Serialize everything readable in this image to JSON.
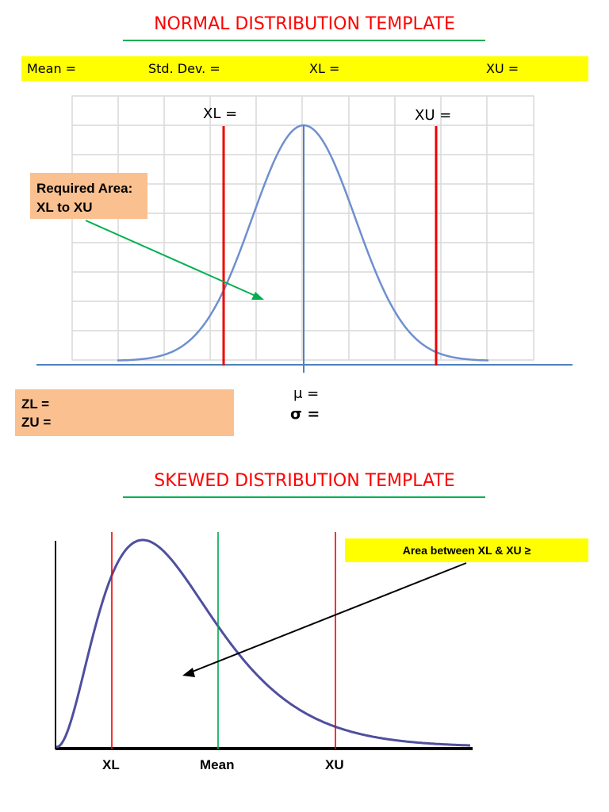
{
  "normal": {
    "title": "NORMAL DISTRIBUTION TEMPLATE",
    "params": {
      "mean": "Mean =",
      "std_dev": "Std. Dev. =",
      "xl": "XL =",
      "xu": "XU ="
    },
    "xl_label": "XL =",
    "xu_label": "XU =",
    "callout_line1": "Required Area:",
    "callout_line2": "XL to XU",
    "zl": "ZL =",
    "zu": "ZU =",
    "mu": "μ =",
    "sigma": "σ ="
  },
  "skewed": {
    "title": "SKEWED DISTRIBUTION TEMPLATE",
    "callout": "Area between XL & XU ≥",
    "xl": "XL",
    "mean": "Mean",
    "xu": "XU"
  },
  "colors": {
    "title": "#ff0000",
    "underline": "#00b050",
    "highlight": "#ffff00",
    "callout": "#fac090",
    "curve_normal": "#6f8fcf",
    "curve_skewed": "#4f4f9f",
    "bound_line": "#ee0000",
    "axis": "#4f81bd"
  }
}
